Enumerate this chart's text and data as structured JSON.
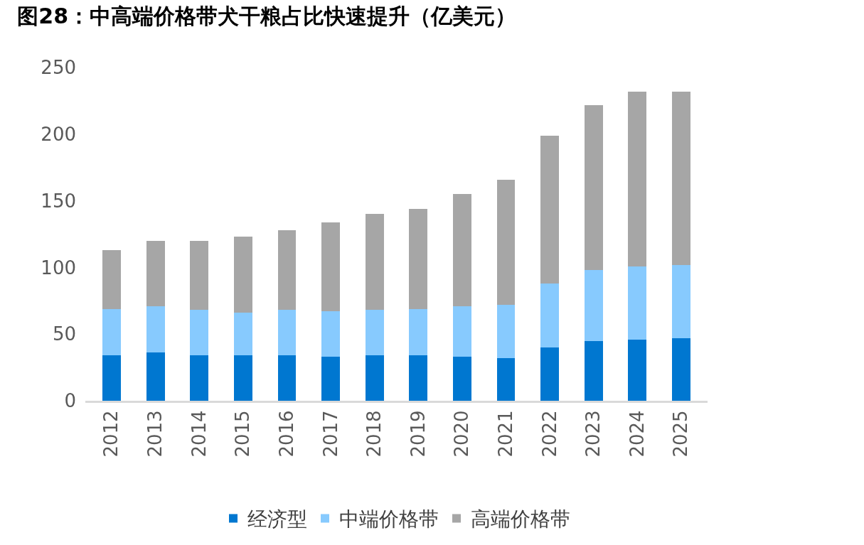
{
  "chart_data": {
    "type": "bar",
    "title": "图28：中高端价格带犬干粮占比快速提升（亿美元）",
    "categories": [
      "2012",
      "2013",
      "2014",
      "2015",
      "2016",
      "2017",
      "2018",
      "2019",
      "2020",
      "2021",
      "2022",
      "2023",
      "2024",
      "2025"
    ],
    "stacked": true,
    "series": [
      {
        "name": "经济型",
        "color": "#0077d0",
        "values": [
          34,
          36,
          34,
          34,
          34,
          33,
          34,
          34,
          33,
          32,
          40,
          45,
          46,
          47
        ]
      },
      {
        "name": "中端价格带",
        "color": "#87cafe",
        "values": [
          35,
          35,
          34,
          32,
          34,
          34,
          34,
          35,
          38,
          40,
          48,
          53,
          55,
          55
        ]
      },
      {
        "name": "高端价格带",
        "color": "#a6a6a6",
        "values": [
          44,
          49,
          52,
          57,
          60,
          67,
          72,
          75,
          84,
          94,
          111,
          124,
          131,
          130
        ]
      }
    ],
    "ylim": [
      0,
      250
    ],
    "yticks": [
      0,
      50,
      100,
      150,
      200,
      250
    ],
    "legend": "bottom"
  }
}
